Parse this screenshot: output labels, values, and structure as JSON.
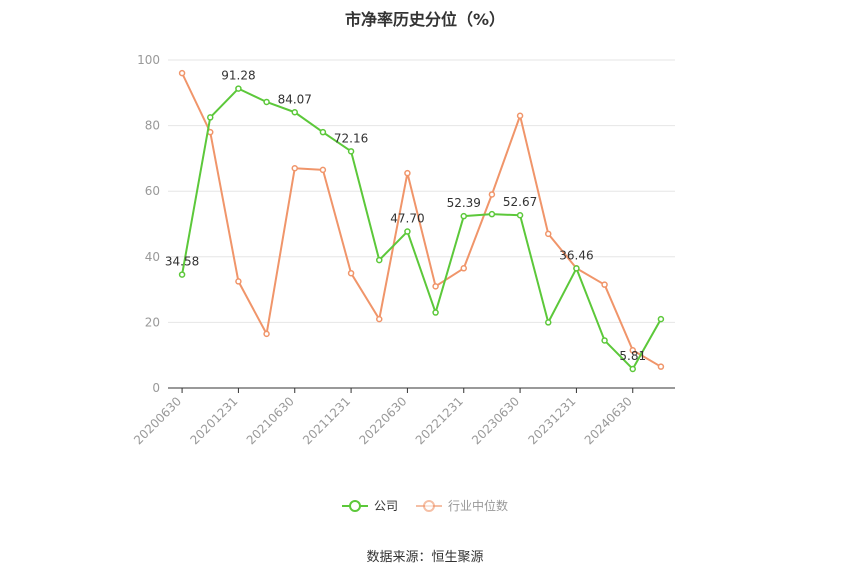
{
  "chart_data": {
    "type": "line",
    "title": "市净率历史分位（%）",
    "source": "数据来源：恒生聚源",
    "ylim": [
      0,
      100
    ],
    "yticks": [
      0,
      20,
      40,
      60,
      80,
      100
    ],
    "grid": true,
    "legend_position": "bottom",
    "x": [
      "20200630",
      "20200930",
      "20201231",
      "20210331",
      "20210630",
      "20210930",
      "20211231",
      "20220331",
      "20220630",
      "20220930",
      "20221231",
      "20230331",
      "20230630",
      "20230930",
      "20231231",
      "20240331",
      "20240630",
      "20240930"
    ],
    "xtick_labels": [
      "20200630",
      "20201231",
      "20210630",
      "20211231",
      "20220630",
      "20221231",
      "20230630",
      "20231231",
      "20240630"
    ],
    "series": [
      {
        "name": "公司",
        "color": "#5cc83a",
        "values": [
          34.58,
          82.5,
          91.28,
          87.2,
          84.07,
          78.0,
          72.16,
          39.0,
          47.7,
          23.0,
          52.39,
          53.0,
          52.67,
          20.0,
          36.46,
          14.5,
          5.81,
          21.0
        ],
        "labels": [
          "34.58",
          null,
          "91.28",
          null,
          "84.07",
          null,
          "72.16",
          null,
          "47.70",
          null,
          "52.39",
          null,
          "52.67",
          null,
          "36.46",
          null,
          "5.81",
          null
        ]
      },
      {
        "name": "行业中位数",
        "color": "#f0956a",
        "values": [
          96.0,
          78.0,
          32.5,
          16.5,
          67.0,
          66.5,
          35.0,
          21.0,
          65.5,
          31.0,
          36.5,
          59.0,
          83.0,
          47.0,
          36.5,
          31.5,
          11.5,
          6.5
        ],
        "labels": []
      }
    ]
  }
}
